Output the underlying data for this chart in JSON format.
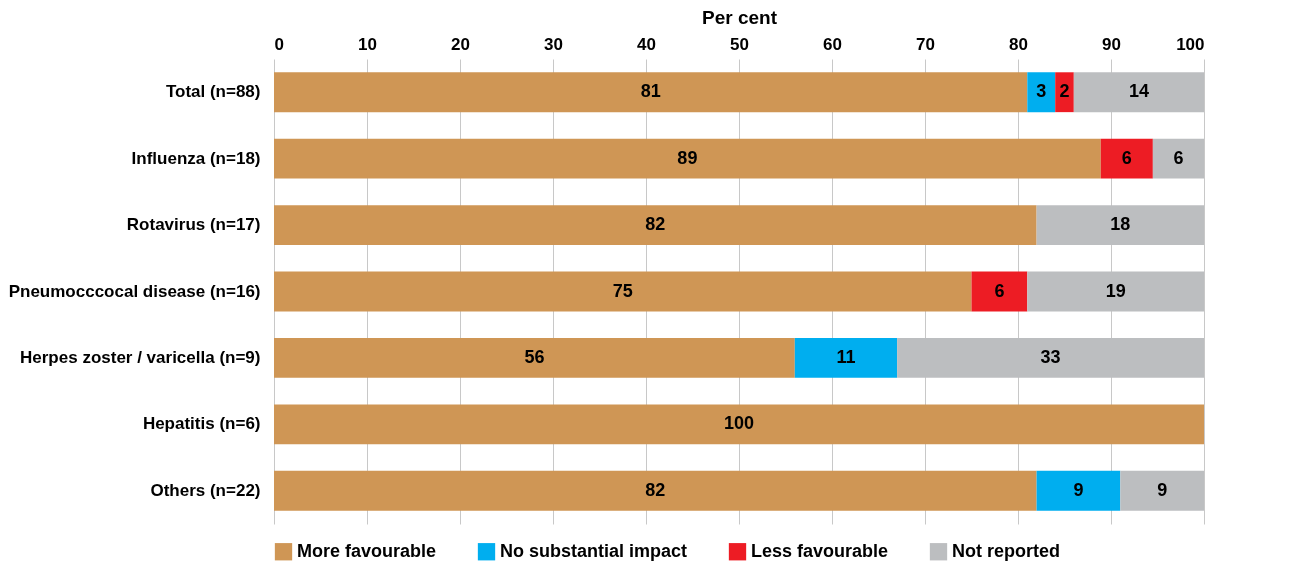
{
  "chart_data": {
    "type": "bar",
    "orientation": "horizontal",
    "stacked": true,
    "categories": [
      "Total (n=88)",
      "Influenza (n=18)",
      "Rotavirus (n=17)",
      "Pneumocccocal disease (n=16)",
      "Herpes zoster / varicella (n=9)",
      "Hepatitis (n=6)",
      "Others (n=22)"
    ],
    "series": [
      {
        "name": "More favourable",
        "color": "#cf9655",
        "values": [
          81,
          88.9,
          82,
          75,
          56,
          100,
          82
        ],
        "value_labels": [
          "81",
          "89",
          "82",
          "75",
          "56",
          "100",
          "82"
        ]
      },
      {
        "name": "No substantial impact",
        "color": "#00aeef",
        "values": [
          3,
          null,
          null,
          null,
          11,
          null,
          9
        ],
        "value_labels": [
          "3",
          null,
          null,
          null,
          "11",
          null,
          "9"
        ]
      },
      {
        "name": "Less favourable",
        "color": "#ed1c24",
        "values": [
          2,
          5.6,
          null,
          6,
          null,
          null,
          null
        ],
        "value_labels": [
          "2",
          "6",
          null,
          "6",
          null,
          null,
          null
        ]
      },
      {
        "name": "Not reported",
        "color": "#bcbec0",
        "values": [
          14,
          5.5,
          18,
          19,
          33,
          null,
          9
        ],
        "value_labels": [
          "14",
          "6",
          "18",
          "19",
          "33",
          null,
          "9"
        ]
      }
    ],
    "xlabel": "Per cent",
    "xlim": [
      0,
      100
    ],
    "xticks": [
      0,
      10,
      20,
      30,
      40,
      50,
      60,
      70,
      80,
      90,
      100
    ],
    "grid": "x",
    "legend": "bottom"
  }
}
